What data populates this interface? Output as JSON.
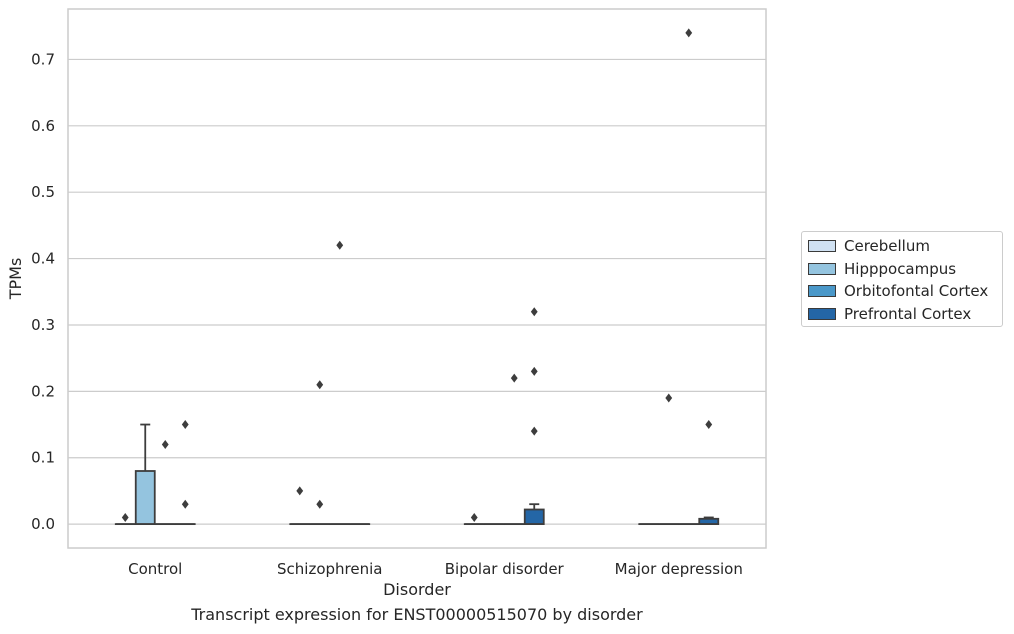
{
  "chart_data": {
    "type": "box",
    "title": "",
    "xlabel": "Disorder",
    "ylabel": "TPMs",
    "caption": "Transcript expression for ENST00000515070 by disorder",
    "categories": [
      "Control",
      "Schizophrenia",
      "Bipolar disorder",
      "Major depression"
    ],
    "ylim": [
      -0.036,
      0.776
    ],
    "yticks": [
      0.0,
      0.1,
      0.2,
      0.3,
      0.4,
      0.5,
      0.6,
      0.7
    ],
    "ytick_labels": [
      "0.0",
      "0.1",
      "0.2",
      "0.3",
      "0.4",
      "0.5",
      "0.6",
      "0.7"
    ],
    "grid": "horizontal",
    "legend_position": "right",
    "series": [
      {
        "name": "Cerebellum",
        "color": "#d0e1f2",
        "boxes": [
          {
            "q1": 0,
            "median": 0,
            "q3": 0,
            "whisker_low": 0,
            "whisker_high": 0,
            "outliers": [
              0.01
            ]
          },
          {
            "q1": 0,
            "median": 0,
            "q3": 0,
            "whisker_low": 0,
            "whisker_high": 0,
            "outliers": [
              0.05
            ]
          },
          {
            "q1": 0,
            "median": 0,
            "q3": 0,
            "whisker_low": 0,
            "whisker_high": 0,
            "outliers": [
              0.01
            ]
          },
          {
            "q1": 0,
            "median": 0,
            "q3": 0,
            "whisker_low": 0,
            "whisker_high": 0,
            "outliers": []
          }
        ]
      },
      {
        "name": "Hipppocampus",
        "color": "#94c4df",
        "boxes": [
          {
            "q1": 0,
            "median": 0,
            "q3": 0.08,
            "whisker_low": 0,
            "whisker_high": 0.15,
            "outliers": []
          },
          {
            "q1": 0,
            "median": 0,
            "q3": 0,
            "whisker_low": 0,
            "whisker_high": 0,
            "outliers": [
              0.21,
              0.03
            ]
          },
          {
            "q1": 0,
            "median": 0,
            "q3": 0,
            "whisker_low": 0,
            "whisker_high": 0,
            "outliers": []
          },
          {
            "q1": 0,
            "median": 0,
            "q3": 0,
            "whisker_low": 0,
            "whisker_high": 0,
            "outliers": [
              0.19
            ]
          }
        ]
      },
      {
        "name": "Orbitofontal Cortex",
        "color": "#4a98c9",
        "boxes": [
          {
            "q1": 0,
            "median": 0,
            "q3": 0,
            "whisker_low": 0,
            "whisker_high": 0,
            "outliers": [
              0.12
            ]
          },
          {
            "q1": 0,
            "median": 0,
            "q3": 0,
            "whisker_low": 0,
            "whisker_high": 0,
            "outliers": [
              0.42
            ]
          },
          {
            "q1": 0,
            "median": 0,
            "q3": 0,
            "whisker_low": 0,
            "whisker_high": 0,
            "outliers": [
              0.22
            ]
          },
          {
            "q1": 0,
            "median": 0,
            "q3": 0,
            "whisker_low": 0,
            "whisker_high": 0,
            "outliers": [
              0.74
            ]
          }
        ]
      },
      {
        "name": "Prefrontal Cortex",
        "color": "#2466a6",
        "boxes": [
          {
            "q1": 0,
            "median": 0,
            "q3": 0,
            "whisker_low": 0,
            "whisker_high": 0,
            "outliers": [
              0.15,
              0.03
            ]
          },
          {
            "q1": 0,
            "median": 0,
            "q3": 0,
            "whisker_low": 0,
            "whisker_high": 0,
            "outliers": []
          },
          {
            "q1": 0,
            "median": 0,
            "q3": 0.022,
            "whisker_low": 0,
            "whisker_high": 0.03,
            "outliers": [
              0.32,
              0.23,
              0.14
            ]
          },
          {
            "q1": 0,
            "median": 0,
            "q3": 0.008,
            "whisker_low": 0,
            "whisker_high": 0.01,
            "outliers": [
              0.15
            ]
          }
        ]
      }
    ]
  }
}
